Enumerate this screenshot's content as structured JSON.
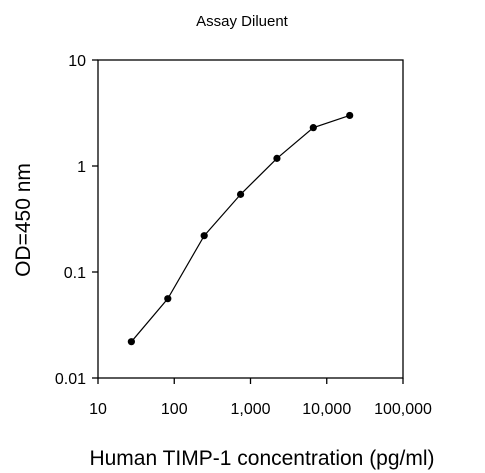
{
  "chart_data": {
    "type": "line",
    "title": "Assay Diluent",
    "xlabel": "Human TIMP-1 concentration (pg/ml)",
    "ylabel": "OD=450 nm",
    "x_scale": "log",
    "y_scale": "log",
    "xlim": [
      10,
      100000
    ],
    "ylim": [
      0.01,
      10
    ],
    "x_ticks": [
      10,
      100,
      1000,
      10000,
      100000
    ],
    "x_tick_labels": [
      "10",
      "100",
      "1,000",
      "10,000",
      "100,000"
    ],
    "y_ticks": [
      0.01,
      0.1,
      1,
      10
    ],
    "y_tick_labels": [
      "0.01",
      "0.1",
      "1",
      "10"
    ],
    "grid": false,
    "series": [
      {
        "x": [
          27.4,
          82.3,
          247,
          741,
          2222,
          6667,
          20000
        ],
        "y": [
          0.022,
          0.056,
          0.22,
          0.54,
          1.18,
          2.3,
          3.0
        ]
      }
    ],
    "colors": {
      "line": "#000000",
      "marker": "#000000",
      "axis": "#000000"
    }
  }
}
